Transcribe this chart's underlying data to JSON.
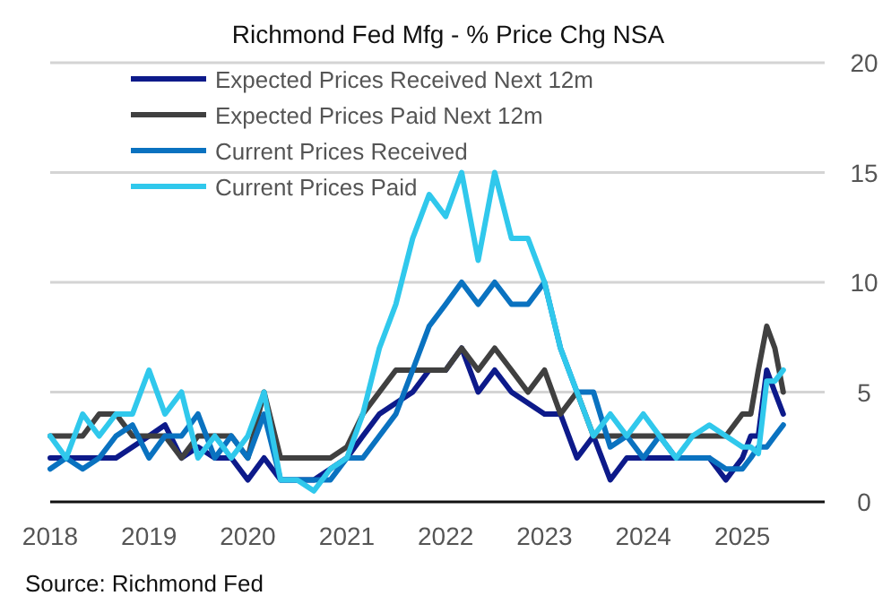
{
  "chart_data": {
    "type": "line",
    "title": "Richmond Fed Mfg - % Price Chg NSA",
    "x": [
      "2018-01",
      "2018-03",
      "2018-05",
      "2018-07",
      "2018-09",
      "2018-11",
      "2019-01",
      "2019-03",
      "2019-05",
      "2019-07",
      "2019-09",
      "2019-11",
      "2020-01",
      "2020-03",
      "2020-05",
      "2020-07",
      "2020-09",
      "2020-11",
      "2021-01",
      "2021-03",
      "2021-05",
      "2021-07",
      "2021-09",
      "2021-11",
      "2022-01",
      "2022-03",
      "2022-05",
      "2022-07",
      "2022-09",
      "2022-11",
      "2023-01",
      "2023-03",
      "2023-05",
      "2023-07",
      "2023-09",
      "2023-11",
      "2024-01",
      "2024-03",
      "2024-05",
      "2024-07",
      "2024-09",
      "2024-11",
      "2025-01",
      "2025-02",
      "2025-03",
      "2025-04",
      "2025-05",
      "2025-06"
    ],
    "series": [
      {
        "name": "Expected Prices Received Next 12m",
        "color": "#0d1a8a",
        "values": [
          2,
          2,
          2,
          2,
          2,
          2.5,
          3,
          3.5,
          2,
          2.5,
          2,
          2,
          1,
          2,
          1,
          1,
          1,
          1.5,
          2,
          3,
          4,
          4.5,
          5,
          6,
          6,
          7,
          5,
          6,
          5,
          4.5,
          4,
          4,
          2,
          3,
          1,
          2,
          2,
          2,
          2,
          2,
          2,
          1,
          2,
          3,
          3,
          6,
          5,
          4
        ]
      },
      {
        "name": "Expected Prices Paid Next 12m",
        "color": "#404040",
        "values": [
          3,
          3,
          3,
          4,
          4,
          3,
          3,
          3,
          2,
          3,
          3,
          3,
          2,
          5,
          2,
          2,
          2,
          2,
          2.5,
          4,
          5,
          6,
          6,
          6,
          6,
          7,
          6,
          7,
          6,
          5,
          6,
          4,
          5,
          3,
          3,
          3,
          3,
          3,
          3,
          3,
          3,
          3,
          4,
          4,
          6,
          8,
          7,
          5
        ]
      },
      {
        "name": "Current Prices Received",
        "color": "#0a72c0",
        "values": [
          1.5,
          2,
          1.5,
          2,
          3,
          3.5,
          2,
          3,
          3,
          4,
          2,
          3,
          2,
          4,
          1,
          1,
          1,
          1,
          2,
          2,
          3,
          4,
          6,
          8,
          9,
          10,
          9,
          10,
          9,
          9,
          10,
          7,
          5,
          5,
          2.5,
          3,
          2,
          3,
          2,
          2,
          2,
          1.5,
          1.5,
          2,
          2.5,
          2.5,
          3,
          3.5
        ]
      },
      {
        "name": "Current Prices Paid",
        "color": "#30c8ec",
        "values": [
          3,
          2,
          4,
          3,
          4,
          4,
          6,
          4,
          5,
          2,
          3,
          2,
          3,
          5,
          1,
          1,
          0.5,
          1.5,
          2,
          4,
          7,
          9,
          12,
          14,
          13,
          15,
          11,
          15,
          12,
          12,
          10,
          7,
          5,
          3,
          4,
          3,
          4,
          3,
          2,
          3,
          3.5,
          3,
          2.5,
          2.5,
          2.2,
          5.5,
          5.5,
          6
        ]
      }
    ],
    "xlim": [
      "2018-01",
      "2025-11"
    ],
    "xticks": [
      {
        "value": "2018-01",
        "label": "2018"
      },
      {
        "value": "2019-01",
        "label": "2019"
      },
      {
        "value": "2020-01",
        "label": "2020"
      },
      {
        "value": "2021-01",
        "label": "2021"
      },
      {
        "value": "2022-01",
        "label": "2022"
      },
      {
        "value": "2023-01",
        "label": "2023"
      },
      {
        "value": "2024-01",
        "label": "2024"
      },
      {
        "value": "2025-01",
        "label": "2025"
      }
    ],
    "ylim": [
      0,
      20
    ],
    "yticks": [
      0,
      5,
      10,
      15,
      20
    ],
    "grid": "y",
    "legend": "top left",
    "annotations": [
      "Source: Richmond Fed"
    ]
  }
}
